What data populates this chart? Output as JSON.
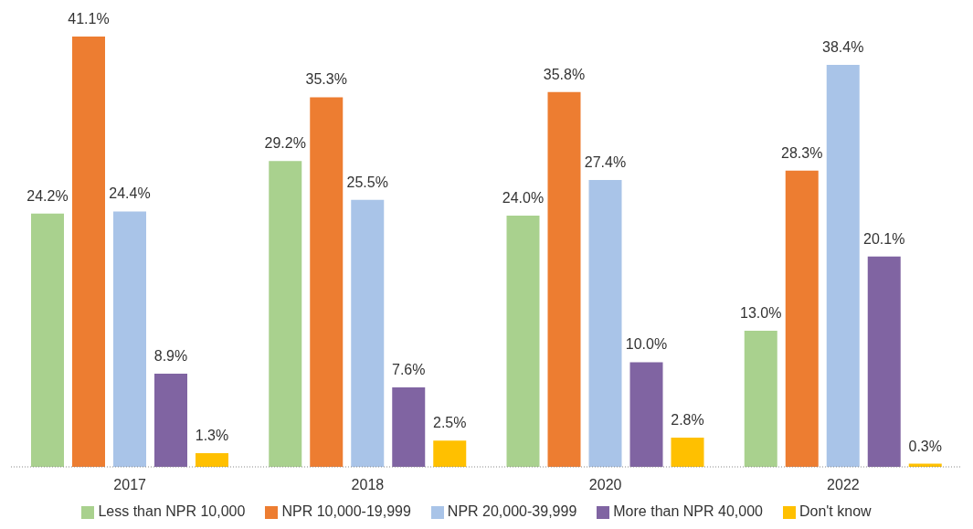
{
  "chart_data": {
    "type": "bar",
    "categories": [
      "2017",
      "2018",
      "2020",
      "2022"
    ],
    "series": [
      {
        "name": "Less than NPR 10,000",
        "color": "#a9d18e",
        "values": [
          24.2,
          29.2,
          24.0,
          13.0
        ],
        "value_labels": [
          "24.2%",
          "29.2%",
          "24.0%",
          "13.0%"
        ]
      },
      {
        "name": "NPR 10,000-19,999",
        "color": "#ed7d31",
        "values": [
          41.1,
          35.3,
          35.8,
          28.3
        ],
        "value_labels": [
          "41.1%",
          "35.3%",
          "35.8%",
          "28.3%"
        ]
      },
      {
        "name": "NPR 20,000-39,999",
        "color": "#a9c4e8",
        "values": [
          24.4,
          25.5,
          27.4,
          38.4
        ],
        "value_labels": [
          "24.4%",
          "25.5%",
          "27.4%",
          "38.4%"
        ]
      },
      {
        "name": "More than NPR 40,000",
        "color": "#8064a2",
        "values": [
          8.9,
          7.6,
          10.0,
          20.1
        ],
        "value_labels": [
          "8.9%",
          "7.6%",
          "10.0%",
          "20.1%"
        ]
      },
      {
        "name": "Don't know",
        "color": "#ffc000",
        "values": [
          1.3,
          2.5,
          2.8,
          0.3
        ],
        "value_labels": [
          "1.3%",
          "2.5%",
          "2.8%",
          "0.3%"
        ]
      }
    ],
    "legend": "bottom",
    "grid": false
  }
}
